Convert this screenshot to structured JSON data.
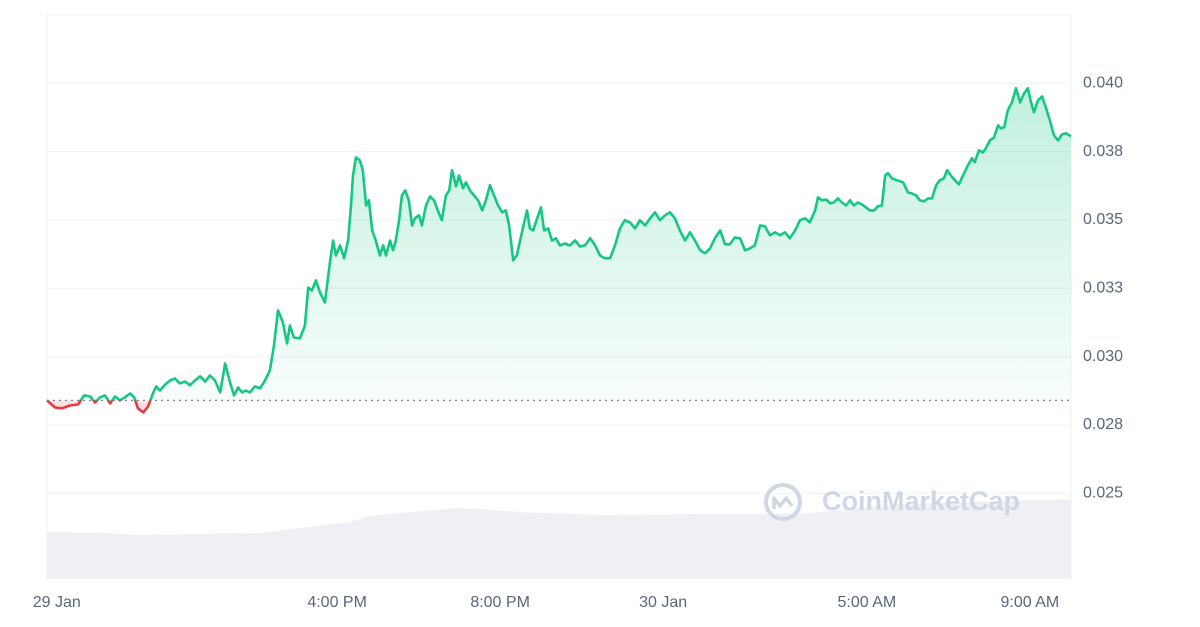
{
  "chart_data": {
    "type": "line",
    "watermark": "CoinMarketCap",
    "color": "#16c784",
    "down_color": "#ea3943",
    "baseline": 0.0284,
    "xlim": [
      8.88,
      34.01
    ],
    "ylim": [
      0.0219,
      0.0425
    ],
    "xticks": [
      {
        "value": 9.12,
        "label": "29 Jan"
      },
      {
        "value": 16,
        "label": "4:00 PM"
      },
      {
        "value": 20,
        "label": "8:00 PM"
      },
      {
        "value": 24,
        "label": "30 Jan"
      },
      {
        "value": 29,
        "label": "5:00 AM"
      },
      {
        "value": 33,
        "label": "9:00 AM"
      }
    ],
    "yticks": [
      0.025,
      {
        "value": 0.0275,
        "label": "0.028"
      },
      {
        "value": 0.03,
        "label": "0.030"
      },
      {
        "value": 0.0325,
        "label": "0.033"
      },
      0.035,
      {
        "value": 0.0375,
        "label": "0.038"
      },
      {
        "value": 0.04,
        "label": "0.040"
      }
    ],
    "grid": true,
    "x": [
      8.88,
      9.08,
      9.25,
      9.44,
      9.64,
      9.79,
      9.94,
      10.06,
      10.18,
      10.3,
      10.43,
      10.55,
      10.67,
      10.79,
      10.92,
      11.02,
      11.11,
      11.24,
      11.36,
      11.48,
      11.56,
      11.65,
      11.78,
      11.9,
      12.02,
      12.14,
      12.27,
      12.39,
      12.51,
      12.64,
      12.76,
      12.88,
      13.0,
      13.13,
      13.25,
      13.37,
      13.47,
      13.57,
      13.67,
      13.76,
      13.86,
      13.98,
      14.11,
      14.23,
      14.35,
      14.45,
      14.55,
      14.67,
      14.77,
      14.84,
      14.94,
      15.09,
      15.21,
      15.29,
      15.38,
      15.48,
      15.58,
      15.7,
      15.83,
      15.9,
      15.97,
      16.07,
      16.17,
      16.27,
      16.34,
      16.39,
      16.46,
      16.56,
      16.63,
      16.71,
      16.78,
      16.86,
      16.95,
      17.05,
      17.13,
      17.2,
      17.3,
      17.37,
      17.44,
      17.52,
      17.59,
      17.67,
      17.76,
      17.84,
      17.91,
      18.01,
      18.08,
      18.18,
      18.28,
      18.38,
      18.47,
      18.57,
      18.67,
      18.75,
      18.82,
      18.92,
      18.99,
      19.09,
      19.16,
      19.26,
      19.36,
      19.46,
      19.56,
      19.65,
      19.75,
      19.85,
      19.95,
      20.05,
      20.14,
      20.22,
      20.32,
      20.41,
      20.49,
      20.59,
      20.66,
      20.73,
      20.81,
      20.91,
      21.0,
      21.08,
      21.18,
      21.27,
      21.37,
      21.47,
      21.59,
      21.71,
      21.84,
      21.96,
      22.08,
      22.21,
      22.33,
      22.45,
      22.57,
      22.7,
      22.82,
      22.94,
      23.06,
      23.19,
      23.31,
      23.43,
      23.56,
      23.68,
      23.8,
      23.92,
      24.05,
      24.17,
      24.29,
      24.41,
      24.54,
      24.66,
      24.78,
      24.91,
      25.03,
      25.15,
      25.27,
      25.4,
      25.52,
      25.64,
      25.76,
      25.89,
      26.01,
      26.13,
      26.25,
      26.38,
      26.5,
      26.62,
      26.75,
      26.87,
      26.99,
      27.11,
      27.24,
      27.36,
      27.48,
      27.6,
      27.73,
      27.8,
      27.9,
      28.0,
      28.1,
      28.19,
      28.29,
      28.39,
      28.49,
      28.59,
      28.68,
      28.78,
      28.88,
      28.98,
      29.08,
      29.18,
      29.27,
      29.37,
      29.45,
      29.52,
      29.62,
      29.74,
      29.89,
      30.01,
      30.11,
      30.21,
      30.3,
      30.4,
      30.5,
      30.6,
      30.7,
      30.79,
      30.89,
      30.97,
      31.06,
      31.16,
      31.26,
      31.36,
      31.48,
      31.58,
      31.65,
      31.75,
      31.85,
      31.92,
      32.02,
      32.12,
      32.22,
      32.29,
      32.37,
      32.46,
      32.56,
      32.66,
      32.76,
      32.86,
      32.95,
      33.03,
      33.1,
      33.2,
      33.3,
      33.4,
      33.49,
      33.59,
      33.69,
      33.79,
      33.89,
      34.01
    ],
    "values": [
      0.0284,
      0.02814,
      0.02811,
      0.02821,
      0.02825,
      0.02858,
      0.02854,
      0.02832,
      0.02851,
      0.02858,
      0.02829,
      0.02854,
      0.0284,
      0.02851,
      0.02865,
      0.02851,
      0.02811,
      0.02796,
      0.02818,
      0.02865,
      0.02891,
      0.02876,
      0.02898,
      0.02913,
      0.0292,
      0.02902,
      0.02909,
      0.02895,
      0.02913,
      0.02928,
      0.02909,
      0.02931,
      0.02913,
      0.02869,
      0.02975,
      0.02906,
      0.02858,
      0.02887,
      0.02869,
      0.02876,
      0.02869,
      0.02891,
      0.02884,
      0.02913,
      0.0295,
      0.03041,
      0.03169,
      0.03125,
      0.03048,
      0.03114,
      0.0307,
      0.03067,
      0.03114,
      0.03253,
      0.03242,
      0.03279,
      0.03235,
      0.03198,
      0.03352,
      0.03425,
      0.0337,
      0.03407,
      0.0336,
      0.03425,
      0.03553,
      0.03663,
      0.03729,
      0.03718,
      0.03682,
      0.03553,
      0.03572,
      0.03462,
      0.03425,
      0.0337,
      0.03407,
      0.0337,
      0.03425,
      0.03389,
      0.03425,
      0.03499,
      0.0359,
      0.03608,
      0.03572,
      0.0348,
      0.03506,
      0.03517,
      0.0348,
      0.03553,
      0.03586,
      0.03572,
      0.03535,
      0.03499,
      0.0359,
      0.03608,
      0.03682,
      0.03623,
      0.03663,
      0.03616,
      0.03638,
      0.03608,
      0.0359,
      0.03572,
      0.03535,
      0.03572,
      0.03627,
      0.0359,
      0.03553,
      0.03528,
      0.03535,
      0.0348,
      0.03352,
      0.0337,
      0.03425,
      0.03491,
      0.03535,
      0.03469,
      0.03462,
      0.03506,
      0.03546,
      0.03462,
      0.03469,
      0.03425,
      0.03433,
      0.03407,
      0.03414,
      0.03407,
      0.03425,
      0.03403,
      0.03407,
      0.03433,
      0.03407,
      0.0337,
      0.0336,
      0.0336,
      0.03407,
      0.03469,
      0.03499,
      0.03491,
      0.03469,
      0.03499,
      0.0348,
      0.03506,
      0.03528,
      0.03499,
      0.03517,
      0.03528,
      0.03506,
      0.03462,
      0.03425,
      0.03455,
      0.03425,
      0.03389,
      0.03378,
      0.03396,
      0.03433,
      0.03462,
      0.03411,
      0.03411,
      0.03436,
      0.03433,
      0.03389,
      0.03396,
      0.03407,
      0.0348,
      0.03477,
      0.03444,
      0.03455,
      0.03444,
      0.03455,
      0.03433,
      0.03462,
      0.03499,
      0.03506,
      0.03491,
      0.03535,
      0.03583,
      0.03572,
      0.03575,
      0.03561,
      0.03564,
      0.03579,
      0.03564,
      0.03553,
      0.03572,
      0.03553,
      0.03564,
      0.03557,
      0.03546,
      0.03535,
      0.03535,
      0.0355,
      0.03553,
      0.03663,
      0.03671,
      0.03652,
      0.03645,
      0.03638,
      0.03601,
      0.03597,
      0.0359,
      0.03572,
      0.03568,
      0.03579,
      0.03579,
      0.03627,
      0.03645,
      0.03652,
      0.03682,
      0.03663,
      0.03645,
      0.0363,
      0.03663,
      0.037,
      0.03726,
      0.03711,
      0.03755,
      0.03747,
      0.03762,
      0.03791,
      0.03802,
      0.03846,
      0.03835,
      0.03839,
      0.03901,
      0.0393,
      0.03982,
      0.0393,
      0.03963,
      0.03982,
      0.0393,
      0.03894,
      0.03938,
      0.03952,
      0.03909,
      0.03865,
      0.0381,
      0.03791,
      0.03813,
      0.03817,
      0.03806
    ]
  }
}
